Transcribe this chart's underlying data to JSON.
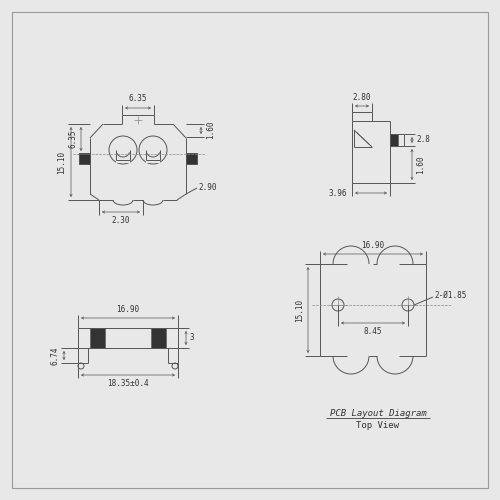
{
  "bg_color": "#e8e8e8",
  "line_color": "#555555",
  "dim_color": "#555555",
  "text_color": "#333333",
  "font_size": 5.5,
  "title_text": "PCB Layout Diagram",
  "subtitle_text": "Top View",
  "dims": {
    "front_6_35": "6.35",
    "front_15_10": "15.10",
    "front_6_35v": "6.35",
    "front_1_60": "1.60",
    "front_2_90": "2.90",
    "front_2_30": "2.30",
    "side_2_80": "2.80",
    "side_2_8": "2.8",
    "side_1_60": "1.60",
    "side_3_96": "3.96",
    "bottom_16_90": "16.90",
    "bottom_3": "3",
    "bottom_6_74": "6.74",
    "bottom_18_35": "18.35±0.4",
    "top_16_90": "16.90",
    "top_15_10": "15.10",
    "top_8_45": "8.45",
    "top_holes": "2-Ø1.85"
  }
}
